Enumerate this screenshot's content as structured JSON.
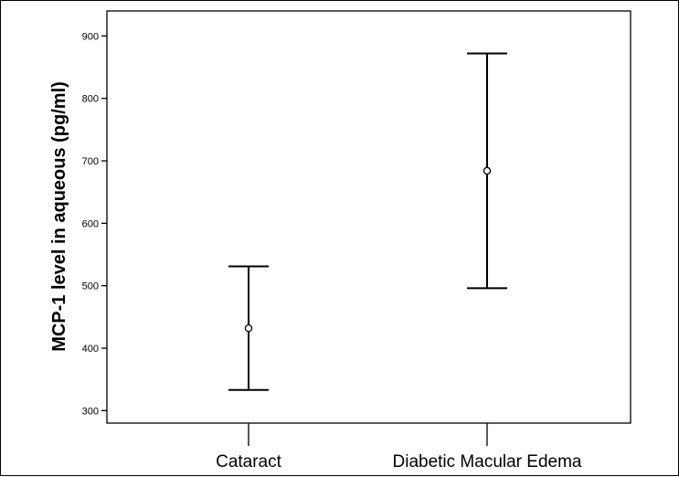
{
  "chart_data": {
    "type": "errorbar",
    "title": "",
    "xlabel": "",
    "ylabel": "MCP-1 level in aqueous (pg/ml)",
    "ylim": [
      280,
      940
    ],
    "yticks": [
      300,
      400,
      500,
      600,
      700,
      800,
      900
    ],
    "grid": false,
    "categories": [
      "Cataract",
      "Diabetic Macular Edema"
    ],
    "series": [
      {
        "mean": [
          432,
          684
        ],
        "lower": [
          333,
          496
        ],
        "upper": [
          531,
          872
        ]
      }
    ],
    "colors": {
      "line": "#000000",
      "background": "#ffffff"
    }
  }
}
